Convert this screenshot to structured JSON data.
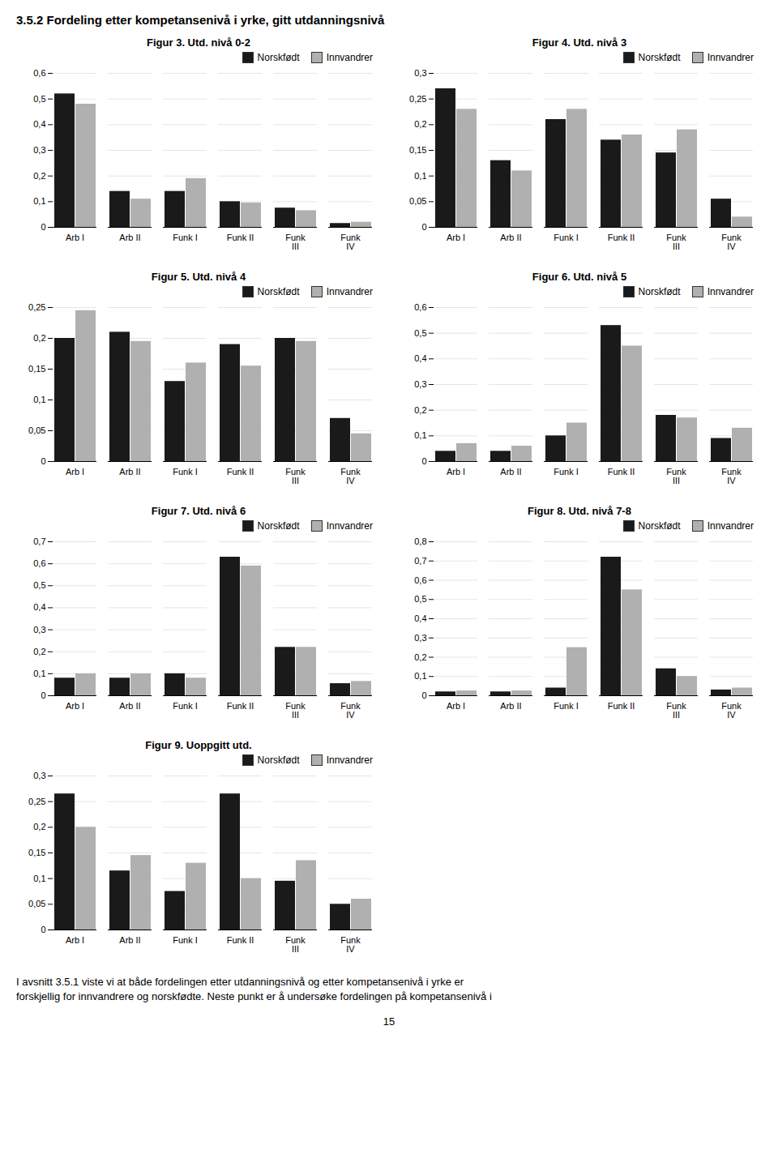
{
  "title": "3.5.2   Fordeling etter kompetansenivå i yrke, gitt utdanningsnivå",
  "annotations": [
    "I avsnitt 3.5.1 viste vi at både fordelingen etter utdanningsnivå og etter kompetansenivå i yrke er\nforskjellig for innvandrere og norskfødte. Neste punkt er å undersøke fordelingen på kompetansenivå i",
    "15"
  ],
  "chart_data": [
    {
      "type": "bar",
      "title": "Figur 3. Utd. nivå 0-2",
      "categories": [
        "Arb I",
        "Arb II",
        "Funk I",
        "Funk II",
        "Funk\nIII",
        "Funk\nIV"
      ],
      "series": [
        {
          "name": "Norskfødt",
          "color": "#1a1a1a",
          "values": [
            0.52,
            0.14,
            0.14,
            0.1,
            0.075,
            0.015
          ]
        },
        {
          "name": "Innvandrer",
          "color": "#b0b0b0",
          "values": [
            0.48,
            0.11,
            0.19,
            0.095,
            0.065,
            0.02
          ]
        }
      ],
      "ylim": [
        0,
        0.6
      ],
      "yticks": [
        0,
        {
          "value": 0.1,
          "label": "0,1"
        },
        {
          "value": 0.2,
          "label": "0,2"
        },
        {
          "value": 0.3,
          "label": "0,3"
        },
        {
          "value": 0.4,
          "label": "0,4"
        },
        {
          "value": 0.5,
          "label": "0,5"
        },
        {
          "value": 0.6,
          "label": "0,6"
        }
      ],
      "grid": true,
      "legend": "upper right"
    },
    {
      "type": "bar",
      "title": "Figur 4. Utd. nivå 3",
      "categories": [
        "Arb I",
        "Arb II",
        "Funk I",
        "Funk II",
        "Funk\nIII",
        "Funk\nIV"
      ],
      "series": [
        {
          "name": "Norskfødt",
          "color": "#1a1a1a",
          "values": [
            0.27,
            0.13,
            0.21,
            0.17,
            0.145,
            0.055
          ]
        },
        {
          "name": "Innvandrer",
          "color": "#b0b0b0",
          "values": [
            0.23,
            0.11,
            0.23,
            0.18,
            0.19,
            0.02
          ]
        }
      ],
      "ylim": [
        0,
        0.3
      ],
      "yticks": [
        0,
        {
          "value": 0.05,
          "label": "0,05"
        },
        {
          "value": 0.1,
          "label": "0,1"
        },
        {
          "value": 0.15,
          "label": "0,15"
        },
        {
          "value": 0.2,
          "label": "0,2"
        },
        {
          "value": 0.25,
          "label": "0,25"
        },
        {
          "value": 0.3,
          "label": "0,3"
        }
      ],
      "grid": true,
      "legend": "upper right"
    },
    {
      "type": "bar",
      "title": "Figur 5. Utd. nivå 4",
      "categories": [
        "Arb I",
        "Arb II",
        "Funk I",
        "Funk II",
        "Funk\nIII",
        "Funk\nIV"
      ],
      "series": [
        {
          "name": "Norskfødt",
          "color": "#1a1a1a",
          "values": [
            0.2,
            0.21,
            0.13,
            0.19,
            0.2,
            0.07
          ]
        },
        {
          "name": "Innvandrer",
          "color": "#b0b0b0",
          "values": [
            0.245,
            0.195,
            0.16,
            0.155,
            0.195,
            0.045
          ]
        }
      ],
      "ylim": [
        0,
        0.25
      ],
      "yticks": [
        0,
        {
          "value": 0.05,
          "label": "0,05"
        },
        {
          "value": 0.1,
          "label": "0,1"
        },
        {
          "value": 0.15,
          "label": "0,15"
        },
        {
          "value": 0.2,
          "label": "0,2"
        },
        {
          "value": 0.25,
          "label": "0,25"
        }
      ],
      "grid": true,
      "legend": "upper right"
    },
    {
      "type": "bar",
      "title": "Figur 6. Utd. nivå 5",
      "categories": [
        "Arb I",
        "Arb II",
        "Funk I",
        "Funk II",
        "Funk\nIII",
        "Funk\nIV"
      ],
      "series": [
        {
          "name": "Norskfødt",
          "color": "#1a1a1a",
          "values": [
            0.04,
            0.04,
            0.1,
            0.53,
            0.18,
            0.09
          ]
        },
        {
          "name": "Innvandrer",
          "color": "#b0b0b0",
          "values": [
            0.07,
            0.06,
            0.15,
            0.45,
            0.17,
            0.13
          ]
        }
      ],
      "ylim": [
        0,
        0.6
      ],
      "yticks": [
        0,
        {
          "value": 0.1,
          "label": "0,1"
        },
        {
          "value": 0.2,
          "label": "0,2"
        },
        {
          "value": 0.3,
          "label": "0,3"
        },
        {
          "value": 0.4,
          "label": "0,4"
        },
        {
          "value": 0.5,
          "label": "0,5"
        },
        {
          "value": 0.6,
          "label": "0,6"
        }
      ],
      "grid": true,
      "legend": "upper right"
    },
    {
      "type": "bar",
      "title": "Figur 7. Utd. nivå 6",
      "categories": [
        "Arb I",
        "Arb II",
        "Funk I",
        "Funk II",
        "Funk\nIII",
        "Funk\nIV"
      ],
      "series": [
        {
          "name": "Norskfødt",
          "color": "#1a1a1a",
          "values": [
            0.08,
            0.08,
            0.1,
            0.63,
            0.22,
            0.055
          ]
        },
        {
          "name": "Innvandrer",
          "color": "#b0b0b0",
          "values": [
            0.1,
            0.1,
            0.08,
            0.59,
            0.22,
            0.065
          ]
        }
      ],
      "ylim": [
        0,
        0.7
      ],
      "yticks": [
        0,
        {
          "value": 0.1,
          "label": "0,1"
        },
        {
          "value": 0.2,
          "label": "0,2"
        },
        {
          "value": 0.3,
          "label": "0,3"
        },
        {
          "value": 0.4,
          "label": "0,4"
        },
        {
          "value": 0.5,
          "label": "0,5"
        },
        {
          "value": 0.6,
          "label": "0,6"
        },
        {
          "value": 0.7,
          "label": "0,7"
        }
      ],
      "grid": true,
      "legend": "upper right"
    },
    {
      "type": "bar",
      "title": "Figur 8. Utd. nivå 7-8",
      "categories": [
        "Arb I",
        "Arb II",
        "Funk I",
        "Funk II",
        "Funk\nIII",
        "Funk\nIV"
      ],
      "series": [
        {
          "name": "Norskfødt",
          "color": "#1a1a1a",
          "values": [
            0.02,
            0.02,
            0.04,
            0.72,
            0.14,
            0.03
          ]
        },
        {
          "name": "Innvandrer",
          "color": "#b0b0b0",
          "values": [
            0.025,
            0.025,
            0.25,
            0.55,
            0.1,
            0.04
          ]
        }
      ],
      "ylim": [
        0,
        0.8
      ],
      "yticks": [
        0,
        {
          "value": 0.1,
          "label": "0,1"
        },
        {
          "value": 0.2,
          "label": "0,2"
        },
        {
          "value": 0.3,
          "label": "0,3"
        },
        {
          "value": 0.4,
          "label": "0,4"
        },
        {
          "value": 0.5,
          "label": "0,5"
        },
        {
          "value": 0.6,
          "label": "0,6"
        },
        {
          "value": 0.7,
          "label": "0,7"
        },
        {
          "value": 0.8,
          "label": "0,8"
        }
      ],
      "grid": true,
      "legend": "upper right"
    },
    {
      "type": "bar",
      "title": "Figur 9. Uoppgitt utd.",
      "categories": [
        "Arb I",
        "Arb II",
        "Funk I",
        "Funk II",
        "Funk\nIII",
        "Funk\nIV"
      ],
      "series": [
        {
          "name": "Norskfødt",
          "color": "#1a1a1a",
          "values": [
            0.265,
            0.115,
            0.075,
            0.265,
            0.095,
            0.05
          ]
        },
        {
          "name": "Innvandrer",
          "color": "#b0b0b0",
          "values": [
            0.2,
            0.145,
            0.13,
            0.1,
            0.135,
            0.06
          ]
        }
      ],
      "ylim": [
        0,
        0.3
      ],
      "yticks": [
        0,
        {
          "value": 0.05,
          "label": "0,05"
        },
        {
          "value": 0.1,
          "label": "0,1"
        },
        {
          "value": 0.15,
          "label": "0,15"
        },
        {
          "value": 0.2,
          "label": "0,2"
        },
        {
          "value": 0.25,
          "label": "0,25"
        },
        {
          "value": 0.3,
          "label": "0,3"
        }
      ],
      "grid": true,
      "legend": "upper right"
    }
  ]
}
